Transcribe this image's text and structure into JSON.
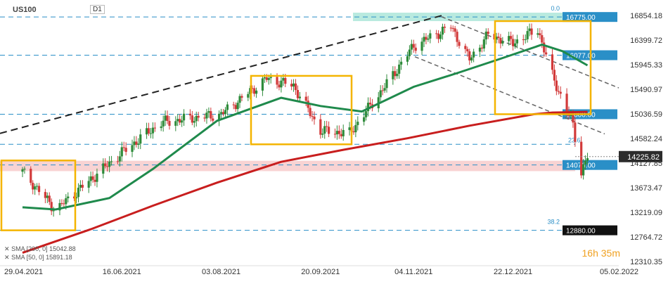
{
  "header": {
    "symbol": "US100",
    "timeframe": "D1"
  },
  "colors": {
    "up": "#2e8b3a",
    "down": "#d23a3a",
    "sma_fast": "#1f8a4c",
    "sma_slow": "#c81e1e",
    "box": "#f4b400",
    "level_line": "#2a8fc7",
    "trend_black": "#222222",
    "trend_gray": "#666666",
    "zone": "#f4b6b6",
    "top_zone": "#7fd9c4"
  },
  "indicators": [
    {
      "label": "SMA [200, 0]",
      "value": "15042.88"
    },
    {
      "label": "SMA [50, 0]",
      "value": "15891.18"
    }
  ],
  "timer": {
    "hours": "16",
    "h": "h",
    "minutes": "35",
    "m": "m"
  },
  "chart_data": {
    "type": "candlestick",
    "x_ticks": [
      "29.04.2021",
      "16.06.2021",
      "03.08.2021",
      "20.09.2021",
      "04.11.2021",
      "22.12.2021",
      "05.02.2022"
    ],
    "y_ticks": [
      "16854.18",
      "16399.72",
      "15945.33",
      "15490.97",
      "15036.59",
      "14582.24",
      "14127.85",
      "13673.47",
      "13219.09",
      "12764.72",
      "12310.35"
    ],
    "ylim": [
      12310.35,
      16854.18
    ],
    "current_price": "14225.82",
    "levels": [
      {
        "value": 16775,
        "label": "16775.00",
        "fib": "0.0"
      },
      {
        "value": 16077,
        "label": "16077.00"
      },
      {
        "value": 15000,
        "label": "15000.00"
      },
      {
        "value": 14073,
        "label": "14073.00"
      },
      {
        "value": 12880,
        "label": "12880.00",
        "fib": "38.2"
      }
    ],
    "mid_fib_label": "23.6",
    "sma_200": {
      "name": "SMA [200, 0]",
      "last": 15042.88
    },
    "sma_50": {
      "name": "SMA [50, 0]",
      "last": 15891.18
    },
    "anchors": [
      {
        "date": "29.04.2021",
        "close": 13950
      },
      {
        "date": "15.05.2021",
        "close": 13250
      },
      {
        "date": "16.06.2021",
        "close": 14300
      },
      {
        "date": "05.07.2021",
        "close": 14850
      },
      {
        "date": "03.08.2021",
        "close": 15000
      },
      {
        "date": "25.08.2021",
        "close": 15650
      },
      {
        "date": "07.09.2021",
        "close": 15520
      },
      {
        "date": "20.09.2021",
        "close": 14700
      },
      {
        "date": "04.10.2021",
        "close": 14650
      },
      {
        "date": "20.10.2021",
        "close": 15450
      },
      {
        "date": "04.11.2021",
        "close": 16250
      },
      {
        "date": "22.11.2021",
        "close": 16600
      },
      {
        "date": "01.12.2021",
        "close": 16000
      },
      {
        "date": "10.12.2021",
        "close": 16450
      },
      {
        "date": "22.12.2021",
        "close": 16300
      },
      {
        "date": "03.01.2022",
        "close": 16550
      },
      {
        "date": "10.01.2022",
        "close": 15700
      },
      {
        "date": "20.01.2022",
        "close": 14800
      },
      {
        "date": "24.01.2022",
        "close": 13950
      },
      {
        "date": "27.01.2022",
        "close": 14225.82
      }
    ]
  }
}
